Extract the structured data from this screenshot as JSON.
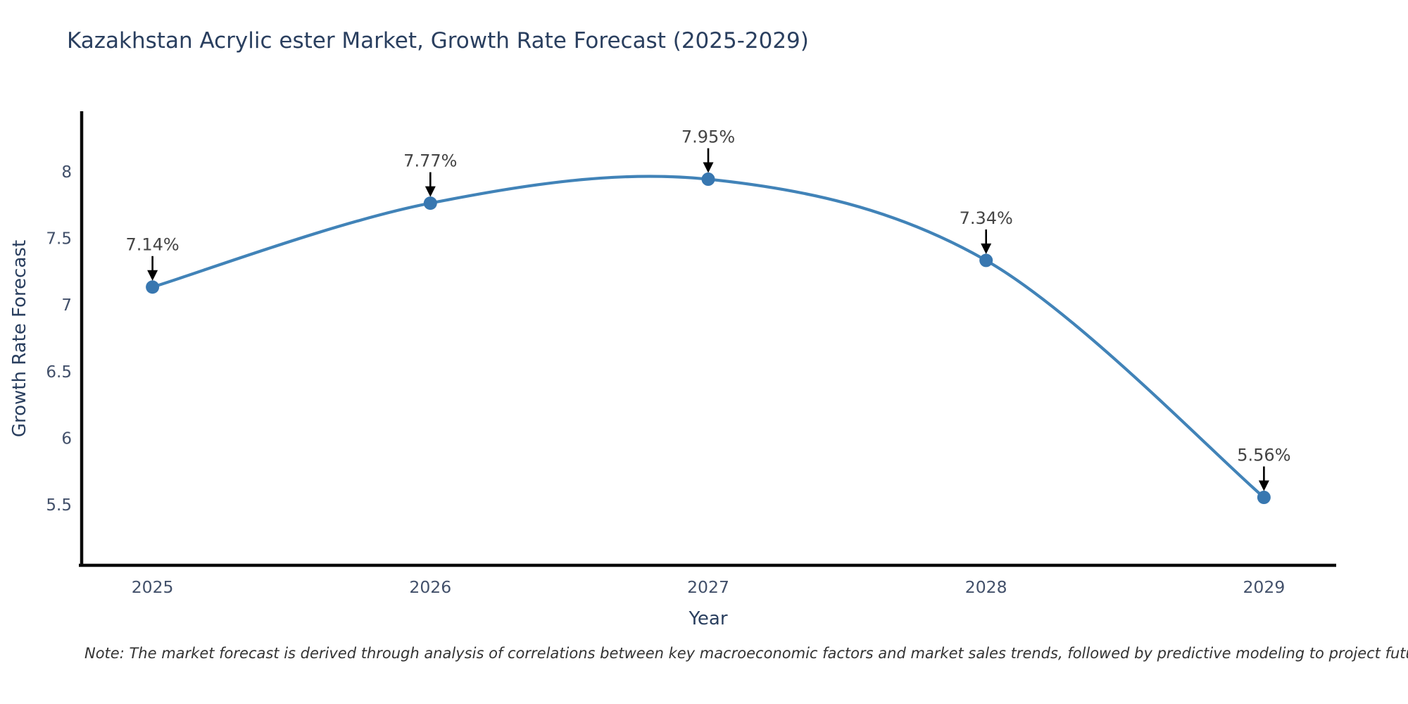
{
  "title": "Kazakhstan Acrylic ester Market, Growth Rate Forecast (2025-2029)",
  "note": "Note: The market forecast is derived through analysis of correlations between key macroeconomic factors and market sales trends, followed by predictive modeling to project future sales.",
  "chart_data": {
    "type": "line",
    "title": "Kazakhstan Acrylic ester Market, Growth Rate Forecast (2025-2029)",
    "xlabel": "Year",
    "ylabel": "Growth Rate Forecast",
    "x": [
      2025,
      2026,
      2027,
      2028,
      2029
    ],
    "values": [
      7.14,
      7.77,
      7.95,
      7.34,
      5.56
    ],
    "point_labels": [
      "7.14%",
      "7.77%",
      "7.95%",
      "7.34%",
      "5.56%"
    ],
    "x_tick_labels": [
      "2025",
      "2026",
      "2027",
      "2028",
      "2029"
    ],
    "y_ticks": [
      5.5,
      6,
      6.5,
      7,
      7.5,
      8
    ],
    "y_tick_labels": [
      "5.5",
      "6",
      "6.5",
      "7",
      "7.5",
      "8"
    ],
    "xlim": [
      2024.74,
      2029.26
    ],
    "ylim": [
      5.05,
      8.45
    ],
    "grid": false,
    "legend": "none",
    "line_shape": "spline",
    "colors": {
      "line": "#4183b8",
      "marker": "#3877b0",
      "axis_line": "#0a0a0a",
      "tick_label": "#42506a",
      "axis_title": "#2a3f5f",
      "annotation_text": "#444444",
      "annotation_arrow": "#000000",
      "background": "#ffffff"
    }
  }
}
